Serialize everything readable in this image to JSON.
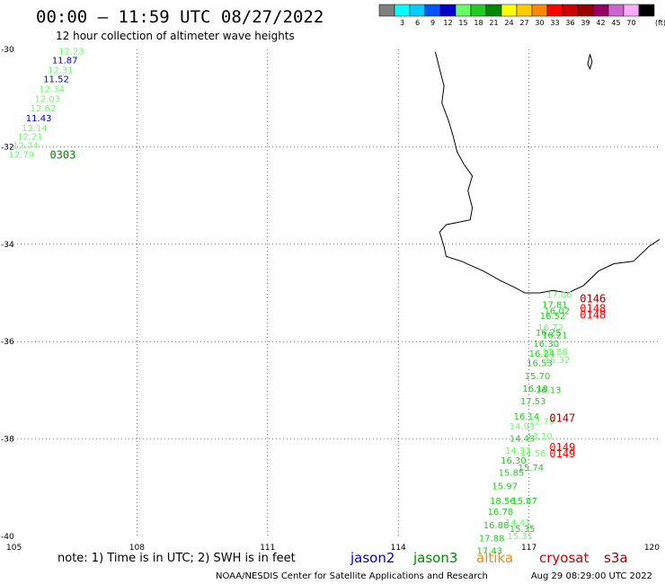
{
  "title": "00:00 – 11:59 UTC 08/27/2022",
  "subtitle": "12 hour collection of altimeter wave heights",
  "legend": {
    "unit": "(ft)",
    "bins": [
      {
        "label": "",
        "color": "#808080"
      },
      {
        "label": "3",
        "color": "#00ffff"
      },
      {
        "label": "6",
        "color": "#00ccff"
      },
      {
        "label": "9",
        "color": "#0055ff"
      },
      {
        "label": "12",
        "color": "#0000cc"
      },
      {
        "label": "15",
        "color": "#66ff66"
      },
      {
        "label": "18",
        "color": "#22cc22"
      },
      {
        "label": "21",
        "color": "#008800"
      },
      {
        "label": "24",
        "color": "#ffff00"
      },
      {
        "label": "27",
        "color": "#ffcc00"
      },
      {
        "label": "30",
        "color": "#ff8800"
      },
      {
        "label": "33",
        "color": "#ff0000"
      },
      {
        "label": "36",
        "color": "#cc0000"
      },
      {
        "label": "39",
        "color": "#990000"
      },
      {
        "label": "42",
        "color": "#990066"
      },
      {
        "label": "45",
        "color": "#cc66cc"
      },
      {
        "label": "70",
        "color": "#ffaaff"
      },
      {
        "label": "",
        "color": "#000000"
      }
    ]
  },
  "axes": {
    "lon_ticks": [
      "105",
      "108",
      "111",
      "114",
      "117",
      "120"
    ],
    "lat_ticks": [
      "-30",
      "-32",
      "-34",
      "-36",
      "-38",
      "-40"
    ]
  },
  "passes": [
    {
      "label": "0303",
      "color": "#008800",
      "lon": 106.0,
      "lat": -32.17
    },
    {
      "label": "0146",
      "color": "#990000",
      "lon": 118.17,
      "lat": -35.12
    },
    {
      "label": "0148",
      "color": "#ff0000",
      "lon": 118.17,
      "lat": -35.32
    },
    {
      "label": "0148",
      "color": "#ff0000",
      "lon": 118.17,
      "lat": -35.45
    },
    {
      "label": "0147",
      "color": "#990000",
      "lon": 117.47,
      "lat": -37.57
    },
    {
      "label": "0149",
      "color": "#ff0000",
      "lon": 117.47,
      "lat": -38.17
    },
    {
      "label": "0149",
      "color": "#ff0000",
      "lon": 117.47,
      "lat": -38.3
    }
  ],
  "observations": [
    {
      "v": "12.23",
      "lon": 106.2,
      "lat": -30.05,
      "color": "#66ff66"
    },
    {
      "v": "11.87",
      "lon": 106.05,
      "lat": -30.23,
      "color": "#0000cc"
    },
    {
      "v": "12.31",
      "lon": 105.95,
      "lat": -30.43,
      "color": "#66ff66"
    },
    {
      "v": "11.52",
      "lon": 105.85,
      "lat": -30.62,
      "color": "#0000cc"
    },
    {
      "v": "12.34",
      "lon": 105.75,
      "lat": -30.82,
      "color": "#66ff66"
    },
    {
      "v": "12.03",
      "lon": 105.65,
      "lat": -31.02,
      "color": "#66ff66"
    },
    {
      "v": "12.62",
      "lon": 105.55,
      "lat": -31.22,
      "color": "#66ff66"
    },
    {
      "v": "11.43",
      "lon": 105.45,
      "lat": -31.42,
      "color": "#0000cc"
    },
    {
      "v": "13.14",
      "lon": 105.35,
      "lat": -31.62,
      "color": "#66ff66"
    },
    {
      "v": "12.21",
      "lon": 105.25,
      "lat": -31.8,
      "color": "#66ff66"
    },
    {
      "v": "12.74",
      "lon": 105.15,
      "lat": -31.98,
      "color": "#66ff66"
    },
    {
      "v": "12.79",
      "lon": 105.05,
      "lat": -32.17,
      "color": "#66ff66"
    },
    {
      "v": "17.06",
      "lon": 117.4,
      "lat": -35.05,
      "color": "#66ff66"
    },
    {
      "v": "17.81",
      "lon": 117.3,
      "lat": -35.25,
      "color": "#22cc22"
    },
    {
      "v": "16.02",
      "lon": 117.35,
      "lat": -35.38,
      "color": "#22cc22"
    },
    {
      "v": "16.52",
      "lon": 117.25,
      "lat": -35.48,
      "color": "#22cc22"
    },
    {
      "v": "16.72",
      "lon": 117.2,
      "lat": -35.72,
      "color": "#66ff66"
    },
    {
      "v": "16.25",
      "lon": 117.15,
      "lat": -35.82,
      "color": "#22cc22"
    },
    {
      "v": "16.21",
      "lon": 117.3,
      "lat": -35.88,
      "color": "#22cc22"
    },
    {
      "v": "16.30",
      "lon": 117.1,
      "lat": -36.05,
      "color": "#22cc22"
    },
    {
      "v": "16.24",
      "lon": 117.0,
      "lat": -36.25,
      "color": "#22cc22"
    },
    {
      "v": "15.88",
      "lon": 117.3,
      "lat": -36.22,
      "color": "#66ff66"
    },
    {
      "v": "16.32",
      "lon": 117.35,
      "lat": -36.38,
      "color": "#66ff66"
    },
    {
      "v": "16.53",
      "lon": 116.95,
      "lat": -36.45,
      "color": "#22cc22"
    },
    {
      "v": "15.70",
      "lon": 116.9,
      "lat": -36.72,
      "color": "#22cc22"
    },
    {
      "v": "16.18",
      "lon": 116.85,
      "lat": -36.97,
      "color": "#22cc22"
    },
    {
      "v": "16.13",
      "lon": 117.15,
      "lat": -37.0,
      "color": "#22cc22"
    },
    {
      "v": "17.53",
      "lon": 116.8,
      "lat": -37.23,
      "color": "#22cc22"
    },
    {
      "v": "16.14",
      "lon": 116.65,
      "lat": -37.55,
      "color": "#22cc22"
    },
    {
      "v": "12.79",
      "lon": 117.0,
      "lat": -37.65,
      "color": "#66ff66"
    },
    {
      "v": "14.93",
      "lon": 116.55,
      "lat": -37.75,
      "color": "#66ff66"
    },
    {
      "v": "13.20",
      "lon": 116.95,
      "lat": -37.95,
      "color": "#66ff66"
    },
    {
      "v": "14.43",
      "lon": 116.55,
      "lat": -38.0,
      "color": "#22cc22"
    },
    {
      "v": "14.33",
      "lon": 116.45,
      "lat": -38.25,
      "color": "#66ff66"
    },
    {
      "v": "14.56",
      "lon": 116.8,
      "lat": -38.3,
      "color": "#66ff66"
    },
    {
      "v": "16.30",
      "lon": 116.35,
      "lat": -38.45,
      "color": "#22cc22"
    },
    {
      "v": "15.74",
      "lon": 116.75,
      "lat": -38.6,
      "color": "#22cc22"
    },
    {
      "v": "15.85",
      "lon": 116.3,
      "lat": -38.7,
      "color": "#22cc22"
    },
    {
      "v": "15.97",
      "lon": 116.15,
      "lat": -38.98,
      "color": "#22cc22"
    },
    {
      "v": "18.56",
      "lon": 116.1,
      "lat": -39.28,
      "color": "#22cc22"
    },
    {
      "v": "15.87",
      "lon": 116.6,
      "lat": -39.28,
      "color": "#22cc22"
    },
    {
      "v": "16.78",
      "lon": 116.05,
      "lat": -39.5,
      "color": "#22cc22"
    },
    {
      "v": "16.88",
      "lon": 115.95,
      "lat": -39.78,
      "color": "#22cc22"
    },
    {
      "v": "14.41",
      "lon": 116.45,
      "lat": -39.72,
      "color": "#66ff66"
    },
    {
      "v": "15.35",
      "lon": 116.55,
      "lat": -39.85,
      "color": "#22cc22"
    },
    {
      "v": "17.88",
      "lon": 115.85,
      "lat": -40.05,
      "color": "#22cc22"
    },
    {
      "v": "15.31",
      "lon": 116.5,
      "lat": -40.0,
      "color": "#66ff66"
    },
    {
      "v": "17.43",
      "lon": 115.8,
      "lat": -40.3,
      "color": "#22cc22"
    }
  ],
  "coastline": [
    [
      114.85,
      -30.05
    ],
    [
      114.95,
      -30.4
    ],
    [
      115.05,
      -30.75
    ],
    [
      115.0,
      -31.1
    ],
    [
      115.15,
      -31.45
    ],
    [
      115.25,
      -31.75
    ],
    [
      115.35,
      -32.1
    ],
    [
      115.5,
      -32.35
    ],
    [
      115.7,
      -32.6
    ],
    [
      115.6,
      -32.9
    ],
    [
      115.7,
      -33.25
    ],
    [
      115.65,
      -33.5
    ],
    [
      115.1,
      -33.6
    ],
    [
      114.95,
      -33.75
    ],
    [
      115.05,
      -34.05
    ],
    [
      115.1,
      -34.25
    ],
    [
      115.45,
      -34.35
    ],
    [
      115.95,
      -34.55
    ],
    [
      116.35,
      -34.75
    ],
    [
      116.7,
      -34.9
    ],
    [
      116.9,
      -35.0
    ],
    [
      117.25,
      -35.0
    ],
    [
      117.55,
      -34.95
    ],
    [
      117.9,
      -35.0
    ],
    [
      118.25,
      -34.85
    ],
    [
      118.6,
      -34.55
    ],
    [
      118.95,
      -34.4
    ],
    [
      119.4,
      -34.35
    ],
    [
      119.75,
      -34.05
    ],
    [
      120.0,
      -33.9
    ]
  ],
  "island": [
    [
      118.4,
      -30.1
    ],
    [
      118.45,
      -30.25
    ],
    [
      118.4,
      -30.4
    ],
    [
      118.35,
      -30.3
    ],
    [
      118.4,
      -30.1
    ]
  ],
  "note": "note:  1) Time is in UTC; 2) SWH is in feet",
  "satellites": [
    {
      "name": "jason2",
      "color": "#0000cc"
    },
    {
      "name": "jason3",
      "color": "#008800"
    },
    {
      "name": "altika",
      "color": "#ff8800"
    },
    {
      "name": "cryosat",
      "color": "#cc0000"
    },
    {
      "name": "s3a",
      "color": "#990000"
    }
  ],
  "footer": {
    "credit": "NOAA/NESDIS Center for Satellite Applications and Research",
    "timestamp": "Aug 29 08:29:00 UTC 2022"
  }
}
